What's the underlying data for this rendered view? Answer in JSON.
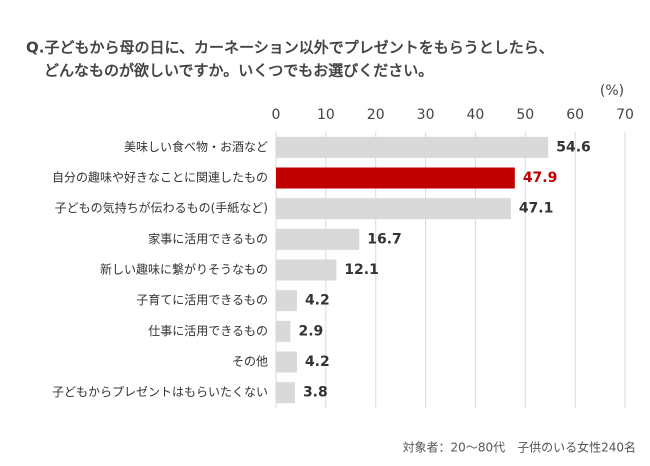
{
  "chart_data": {
    "type": "barh",
    "title_lines": [
      "Q.子どもから母の日に、カーネーション以外でプレゼントをもらうとしたら、",
      "どんなものが欲しいですか。いくつでもお選びください。"
    ],
    "unit": "(%)",
    "note": "対象者：20～80代　子供のいる女性240名",
    "categories": [
      "美味しい食べ物・お酒など",
      "自分の趣味や好きなことに関連したもの",
      "子どもの気持ちが伝わるもの(手紙など)",
      "家事に活用できるもの",
      "新しい趣味に繋がりそうなもの",
      "子育てに活用できるもの",
      "仕事に活用できるもの",
      "その他",
      "子どもからプレゼントはもらいたくない"
    ],
    "values": [
      54.6,
      47.9,
      47.1,
      16.7,
      12.1,
      4.2,
      2.9,
      4.2,
      3.8
    ],
    "colors": [
      "#d9d9d9",
      "#c00000",
      "#d9d9d9",
      "#d9d9d9",
      "#d9d9d9",
      "#d9d9d9",
      "#d9d9d9",
      "#d9d9d9",
      "#d9d9d9"
    ],
    "label_colors": [
      "#333333",
      "#c00000",
      "#333333",
      "#333333",
      "#333333",
      "#333333",
      "#333333",
      "#333333",
      "#333333"
    ],
    "xlim": [
      0,
      70
    ],
    "xticks": [
      0,
      10,
      20,
      30,
      40,
      50,
      60,
      70
    ],
    "grid": true
  }
}
